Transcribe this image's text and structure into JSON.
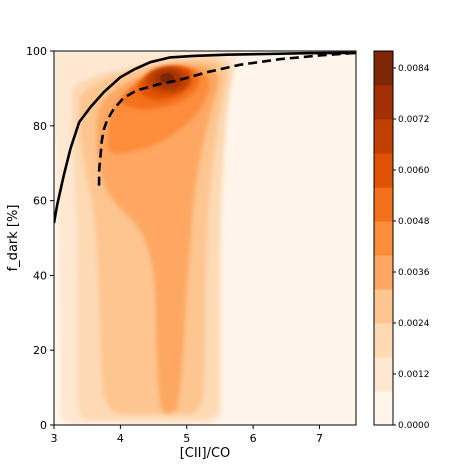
{
  "chart_data": {
    "type": "heatmap",
    "subtype": "filled-contour density with overlaid curves",
    "xlabel": "[CII]/CO",
    "ylabel": "f_dark [%]",
    "xlim": [
      3,
      7.55
    ],
    "ylim": [
      0,
      100
    ],
    "x_ticks": [
      "3",
      "4",
      "5",
      "6",
      "7"
    ],
    "y_ticks": [
      "0",
      "20",
      "40",
      "60",
      "80",
      "100"
    ],
    "grid": false,
    "legend": "none",
    "density_peak": {
      "x": 4.72,
      "y": 92.5
    },
    "colormap": "Oranges",
    "colors": {
      "levels": [
        "#fff5eb",
        "#fee8d2",
        "#fdd9b4",
        "#fdc590",
        "#fda762",
        "#fd8c3b",
        "#f3701b",
        "#e05206",
        "#c14001",
        "#a33003",
        "#7f2704"
      ],
      "curve": "#000000"
    },
    "series": [
      {
        "style": "solid",
        "x": [
          3.0,
          3.05,
          3.15,
          3.25,
          3.38,
          3.55,
          3.75,
          4.0,
          4.2,
          4.45,
          4.75,
          5.1,
          5.6,
          6.2,
          6.8,
          7.3,
          7.55
        ],
        "y": [
          54,
          59,
          67,
          74,
          81,
          85,
          89,
          93,
          95,
          97,
          98.3,
          98.7,
          99,
          99.2,
          99.4,
          99.5,
          99.5
        ]
      },
      {
        "style": "dashed",
        "x": [
          3.68,
          3.68,
          3.7,
          3.72,
          3.75,
          3.8,
          3.9,
          4.05,
          4.25,
          4.55,
          4.9,
          5.3,
          5.8,
          6.4,
          7.0,
          7.55
        ],
        "y": [
          64,
          68,
          72,
          76,
          79,
          81.5,
          84.5,
          87.5,
          89.5,
          91,
          92.3,
          94.3,
          96.3,
          97.8,
          98.8,
          99.5
        ]
      }
    ],
    "colorbar": {
      "range": [
        0,
        0.0088
      ],
      "tick_values": [
        0,
        0.0012,
        0.0024,
        0.0036,
        0.0048,
        0.006,
        0.0072,
        0.0084
      ],
      "ticks": [
        "0.0000",
        "0.0012",
        "0.0024",
        "0.0036",
        "0.0048",
        "0.0060",
        "0.0072",
        "0.0084"
      ]
    }
  }
}
